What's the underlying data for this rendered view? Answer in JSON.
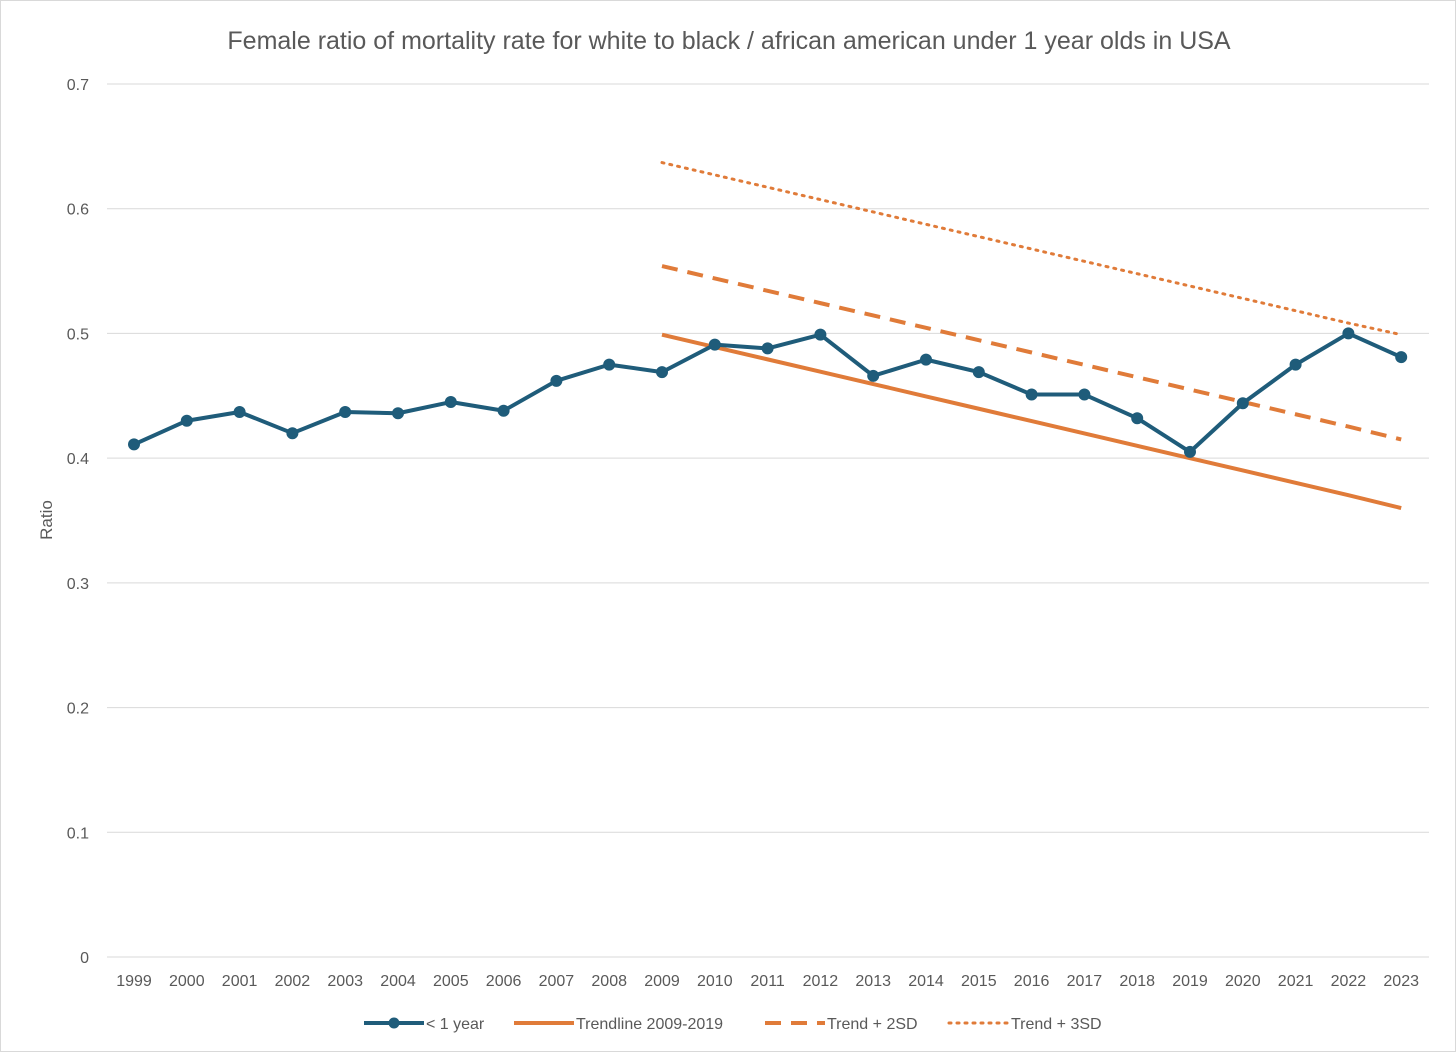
{
  "chart_data": {
    "type": "line",
    "title": "Female ratio of mortality rate for white to black / african american under 1 year olds in USA",
    "xlabel": "",
    "ylabel": "Ratio",
    "ylim": [
      0,
      0.7
    ],
    "y_ticks": [
      "0",
      "0.1",
      "0.2",
      "0.3",
      "0.4",
      "0.5",
      "0.6",
      "0.7"
    ],
    "grid": true,
    "legend_position": "bottom",
    "categories": [
      "1999",
      "2000",
      "2001",
      "2002",
      "2003",
      "2004",
      "2005",
      "2006",
      "2007",
      "2008",
      "2009",
      "2010",
      "2011",
      "2012",
      "2013",
      "2014",
      "2015",
      "2016",
      "2017",
      "2018",
      "2019",
      "2020",
      "2021",
      "2022",
      "2023"
    ],
    "series": [
      {
        "name": "< 1 year",
        "style": "solid-markers",
        "color": "#1f5c7a",
        "values": [
          0.411,
          0.43,
          0.437,
          0.42,
          0.437,
          0.436,
          0.445,
          0.438,
          0.462,
          0.475,
          0.469,
          0.491,
          0.488,
          0.499,
          0.466,
          0.479,
          0.469,
          0.451,
          0.451,
          0.432,
          0.405,
          0.444,
          0.475,
          0.5,
          0.481
        ]
      },
      {
        "name": "Trendline 2009-2019",
        "style": "solid",
        "color": "#e07b39",
        "values": [
          null,
          null,
          null,
          null,
          null,
          null,
          null,
          null,
          null,
          null,
          0.499,
          0.4891,
          0.4792,
          0.4693,
          0.4594,
          0.4495,
          0.4396,
          0.4297,
          0.4198,
          0.4099,
          0.4,
          0.3901,
          0.3802,
          0.3703,
          0.36
        ]
      },
      {
        "name": "Trend + 2SD",
        "style": "dashed",
        "color": "#e07b39",
        "values": [
          null,
          null,
          null,
          null,
          null,
          null,
          null,
          null,
          null,
          null,
          0.554,
          0.5441,
          0.5342,
          0.5243,
          0.5144,
          0.5045,
          0.4946,
          0.4847,
          0.4748,
          0.4649,
          0.455,
          0.4451,
          0.4352,
          0.4253,
          0.415
        ]
      },
      {
        "name": "Trend + 3SD",
        "style": "dotted",
        "color": "#e07b39",
        "values": [
          null,
          null,
          null,
          null,
          null,
          null,
          null,
          null,
          null,
          null,
          0.637,
          0.6271,
          0.6172,
          0.6073,
          0.5974,
          0.5875,
          0.5776,
          0.5677,
          0.5578,
          0.5479,
          0.538,
          0.5281,
          0.5182,
          0.5083,
          0.499
        ]
      }
    ]
  }
}
